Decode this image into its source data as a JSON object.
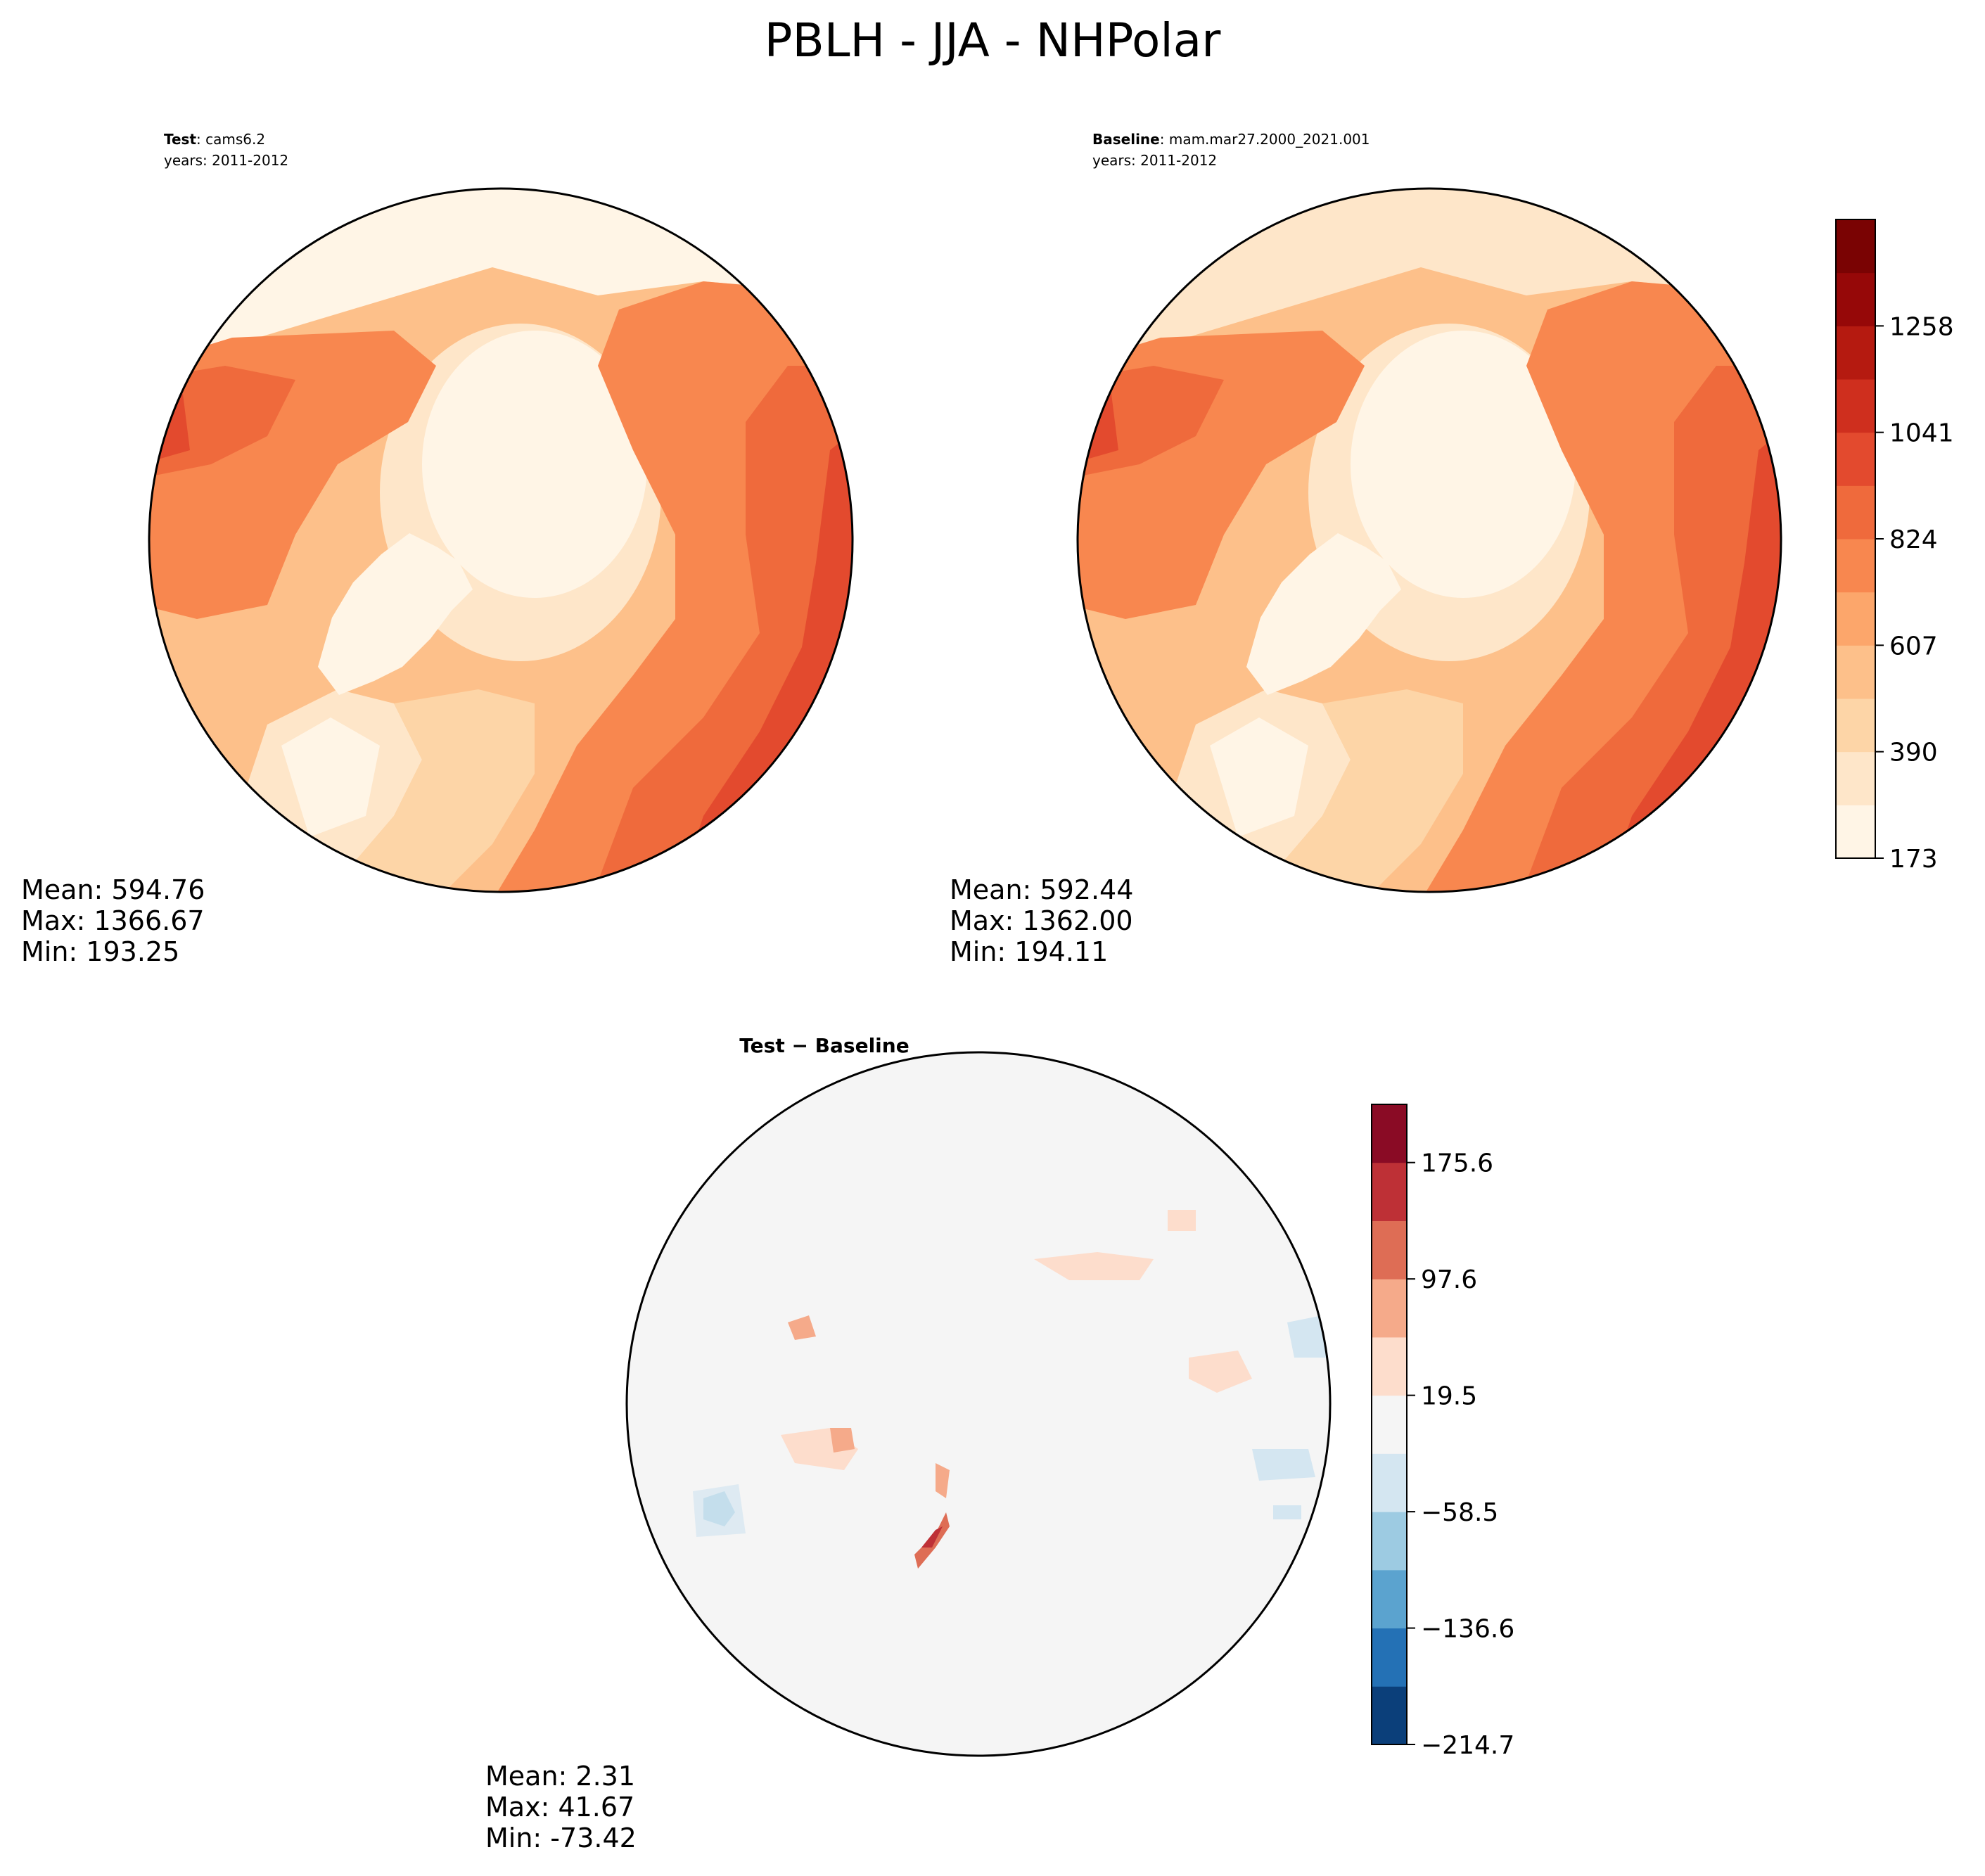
{
  "figure": {
    "title": "PBLH - JJA - NHPolar"
  },
  "panels": {
    "test": {
      "label_bold": "Test",
      "label_value": ": cams6.2",
      "years": "years: 2011-2012",
      "stats": {
        "mean": "Mean: 594.76",
        "max": "Max: 1366.67",
        "min": "Min: 193.25"
      }
    },
    "baseline": {
      "label_bold": "Baseline",
      "label_value": ": mam.mar27.2000_2021.001",
      "years": "years: 2011-2012",
      "stats": {
        "mean": "Mean: 592.44",
        "max": "Max: 1362.00",
        "min": "Min: 194.11"
      }
    },
    "diff": {
      "label": "Test − Baseline",
      "stats": {
        "mean": "Mean:  2.31",
        "max": "Max: 41.67",
        "min": "Min: -73.42"
      }
    }
  },
  "colorbars": {
    "main": {
      "ticks": [
        "173",
        "390",
        "607",
        "824",
        "1041",
        "1258"
      ],
      "colors": [
        "#fff5e6",
        "#fee6c9",
        "#fdd5a7",
        "#fdc08a",
        "#fca66b",
        "#f8874f",
        "#ef6a3c",
        "#e34a2e",
        "#cf2f1e",
        "#b51a10",
        "#960808",
        "#7a0303"
      ]
    },
    "diff": {
      "ticks": [
        "−214.7",
        "−136.6",
        "−58.5",
        "19.5",
        "97.6",
        "175.6"
      ],
      "colors": [
        "#0b3f7a",
        "#2471b5",
        "#5ba3cf",
        "#9dcbe2",
        "#d4e6f1",
        "#f5f5f5",
        "#fdddcc",
        "#f5aa8a",
        "#de6d55",
        "#be3036",
        "#8a0b25"
      ]
    }
  }
}
